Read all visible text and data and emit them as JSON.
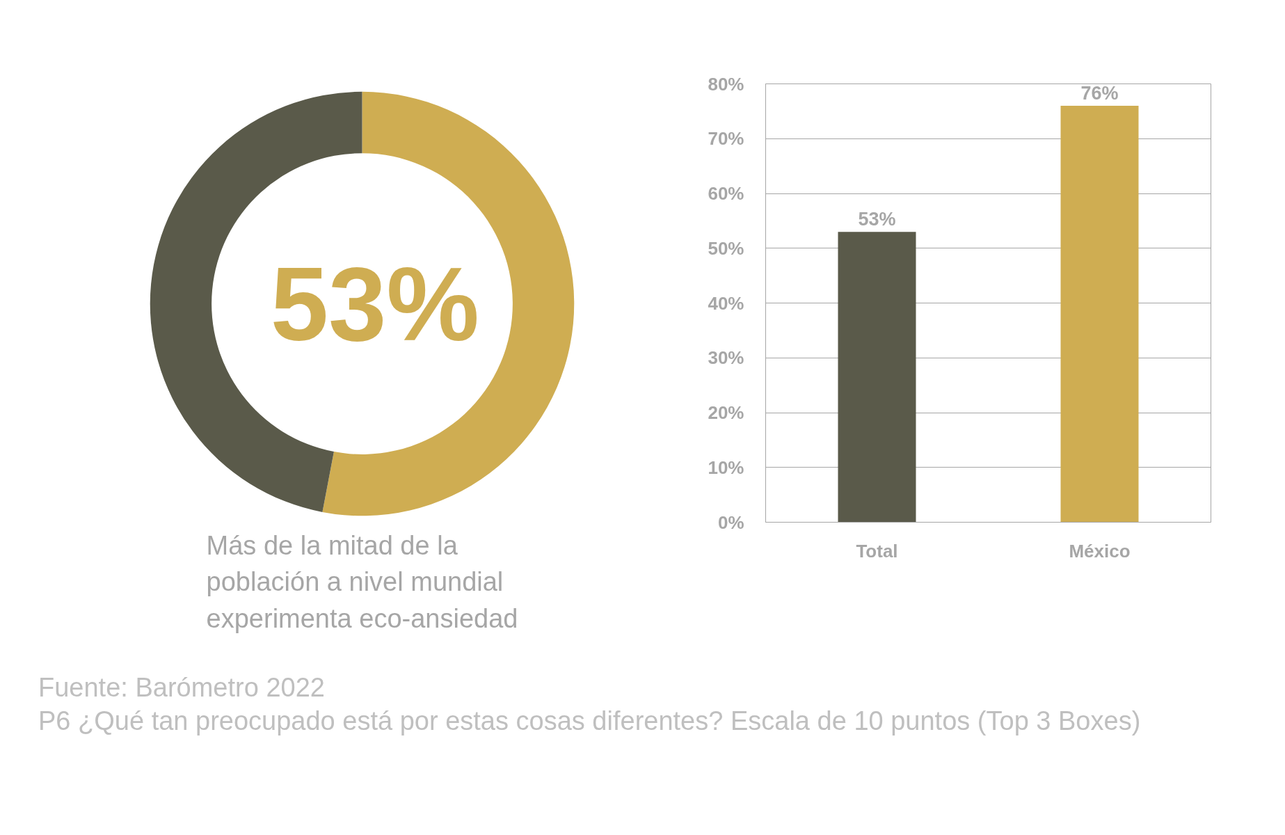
{
  "chart_data": [
    {
      "type": "donut",
      "categories": [
        null,
        null
      ],
      "values": [
        53,
        47
      ],
      "colors": [
        "#cfad52",
        "#5a5a4a"
      ],
      "annotations": [
        "53%",
        "Más de la mitad de la\npoblación a nivel mundial\nexperimenta eco-ansiedad",
        "Fuente: Barómetro 2022",
        "P6 ¿Qué tan preocupado está por estas cosas diferentes? Escala de 10 puntos (Top 3 Boxes)"
      ]
    },
    {
      "type": "bar",
      "categories": [
        "Total",
        "México"
      ],
      "values": [
        53,
        76
      ],
      "colors": [
        "#5a5a4a",
        "#cfad52"
      ],
      "value_labels": [
        "53%",
        "76%"
      ],
      "ylim": [
        0,
        80
      ],
      "yticks": [
        {
          "value": 0,
          "label": "0%"
        },
        {
          "value": 10,
          "label": "10%"
        },
        {
          "value": 20,
          "label": "20%"
        },
        {
          "value": 30,
          "label": "30%"
        },
        {
          "value": 40,
          "label": "40%"
        },
        {
          "value": 50,
          "label": "50%"
        },
        {
          "value": 60,
          "label": "60%"
        },
        {
          "value": 70,
          "label": "70%"
        },
        {
          "value": 80,
          "label": "80%"
        }
      ],
      "grid": "y"
    }
  ]
}
